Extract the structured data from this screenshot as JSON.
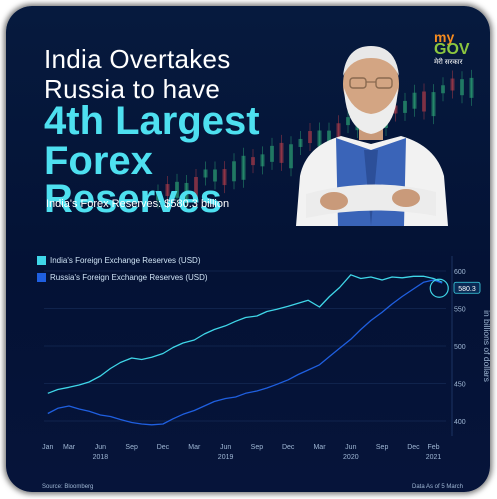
{
  "headline": {
    "line1": "India Overtakes",
    "line2": "Russia to have",
    "line3": "4th Largest",
    "line4": "Forex",
    "line5": "Reserves"
  },
  "subtitle": "India's Forex Reserves: $580.3 billion",
  "logo": {
    "my": "my",
    "gov": "GOV",
    "hindi": "मेरी सरकार"
  },
  "colors": {
    "india": "#3fd6e8",
    "russia": "#1f5fe0",
    "accent": "#4ee0f0",
    "background": "#041235"
  },
  "chart_data": {
    "type": "line",
    "ylabel": "in billions of dollars",
    "y_ticks": [
      400,
      450,
      500,
      550,
      600
    ],
    "ylim": [
      380,
      620
    ],
    "x_tick_labels": [
      "Jan",
      "Mar",
      "Jun",
      "Sep",
      "Dec",
      "Mar",
      "Jun",
      "Sep",
      "Dec",
      "Mar",
      "Jun",
      "Sep",
      "Dec",
      "Feb"
    ],
    "x_tick_dates": [
      2018.0,
      2018.17,
      2018.42,
      2018.67,
      2018.92,
      2019.17,
      2019.42,
      2019.67,
      2019.92,
      2020.17,
      2020.42,
      2020.67,
      2020.92,
      2021.08
    ],
    "year_labels": [
      {
        "label": "2018",
        "x": 2018.42
      },
      {
        "label": "2019",
        "x": 2019.42
      },
      {
        "label": "2020",
        "x": 2020.42
      },
      {
        "label": "2021",
        "x": 2021.08
      }
    ],
    "xlim": [
      2017.97,
      2021.18
    ],
    "series": [
      {
        "name": "India's Foreign Exchange Reserves (USD)",
        "x": [
          2018.0,
          2018.08,
          2018.17,
          2018.25,
          2018.33,
          2018.42,
          2018.5,
          2018.58,
          2018.67,
          2018.75,
          2018.83,
          2018.92,
          2019.0,
          2019.08,
          2019.17,
          2019.25,
          2019.33,
          2019.42,
          2019.5,
          2019.58,
          2019.67,
          2019.75,
          2019.83,
          2019.92,
          2020.0,
          2020.08,
          2020.17,
          2020.25,
          2020.33,
          2020.42,
          2020.5,
          2020.58,
          2020.67,
          2020.75,
          2020.83,
          2020.92,
          2021.0,
          2021.08,
          2021.15
        ],
        "values": [
          437,
          442,
          445,
          448,
          452,
          460,
          470,
          478,
          484,
          482,
          485,
          490,
          498,
          504,
          508,
          516,
          522,
          527,
          533,
          538,
          540,
          546,
          549,
          553,
          557,
          561,
          552,
          566,
          578,
          595,
          590,
          592,
          588,
          592,
          591,
          593,
          593,
          590,
          585
        ]
      },
      {
        "name": "Russia's Foreign Exchange Reserves (USD)",
        "x": [
          2018.0,
          2018.08,
          2018.17,
          2018.25,
          2018.33,
          2018.42,
          2018.5,
          2018.58,
          2018.67,
          2018.75,
          2018.83,
          2018.92,
          2019.0,
          2019.08,
          2019.17,
          2019.25,
          2019.33,
          2019.42,
          2019.5,
          2019.58,
          2019.67,
          2019.75,
          2019.83,
          2019.92,
          2020.0,
          2020.08,
          2020.17,
          2020.25,
          2020.33,
          2020.42,
          2020.5,
          2020.58,
          2020.67,
          2020.75,
          2020.83,
          2020.92,
          2021.0,
          2021.08,
          2021.15
        ],
        "values": [
          410,
          417,
          420,
          416,
          413,
          408,
          406,
          402,
          398,
          396,
          395,
          396,
          403,
          409,
          414,
          420,
          426,
          430,
          432,
          437,
          440,
          444,
          449,
          455,
          462,
          468,
          475,
          486,
          497,
          509,
          522,
          534,
          545,
          556,
          566,
          576,
          585,
          588,
          584
        ]
      }
    ],
    "current_value_label": "580.3"
  },
  "footer": {
    "source": "Source: Bloomberg",
    "asof": "Data As of 5 March"
  }
}
